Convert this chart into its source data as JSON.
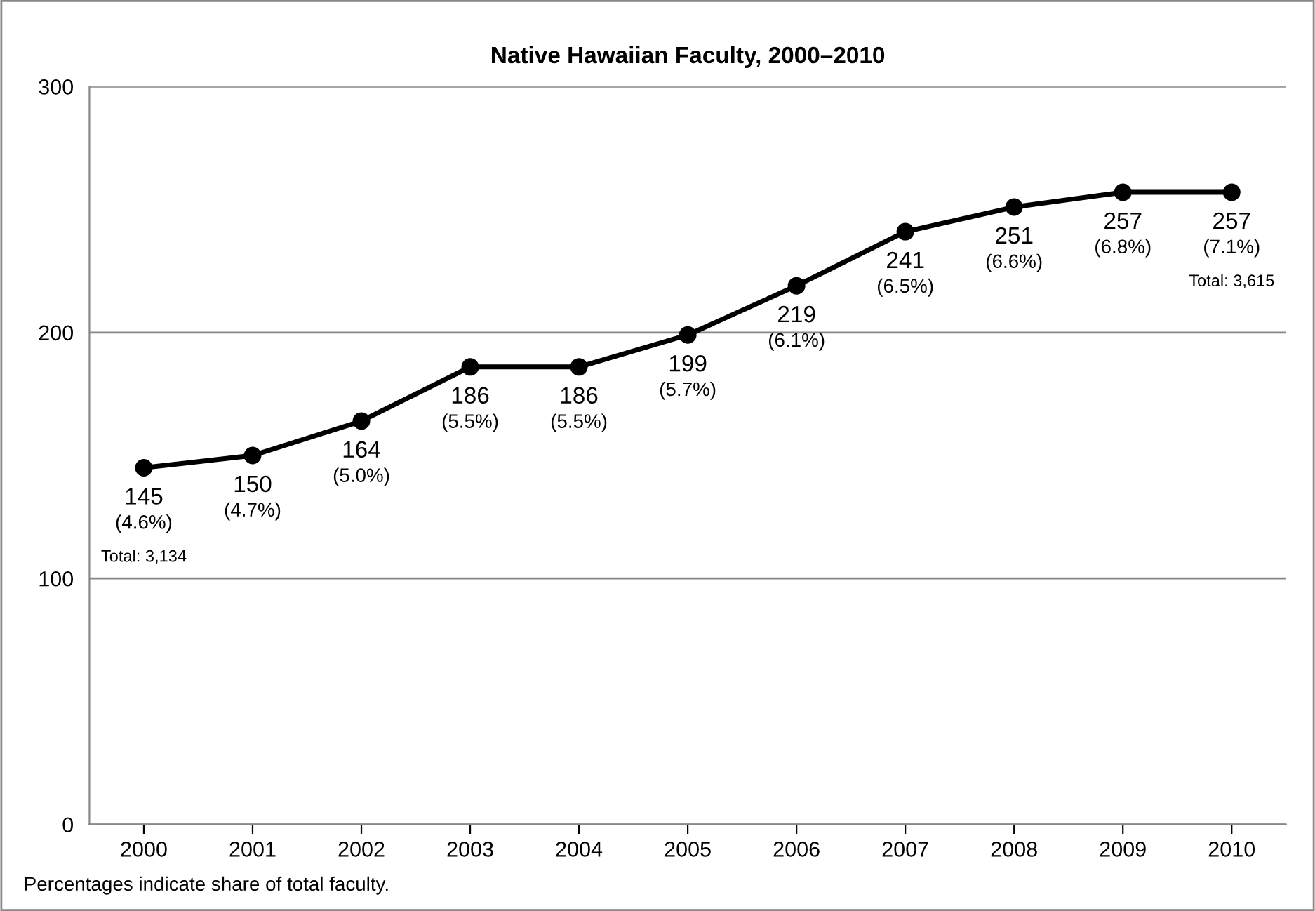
{
  "chart_data": {
    "type": "line",
    "title": "Native Hawaiian Faculty, 2000–2010",
    "categories": [
      "2000",
      "2001",
      "2002",
      "2003",
      "2004",
      "2005",
      "2006",
      "2007",
      "2008",
      "2009",
      "2010"
    ],
    "series": [
      {
        "color": "#000000",
        "values": [
          145,
          150,
          164,
          186,
          186,
          199,
          219,
          241,
          251,
          257,
          257
        ],
        "value_labels": [
          "145\n(4.6%)",
          "150\n(4.7%)",
          "164\n(5.0%)",
          "186\n(5.5%)",
          "186\n(5.5%)",
          "199\n(5.7%)",
          "219\n(6.1%)",
          "241\n(6.5%)",
          "251\n(6.6%)",
          "257\n(6.8%)",
          "257\n(7.1%)"
        ]
      }
    ],
    "ylim": [
      0,
      300
    ],
    "yticks": [
      0,
      100,
      200,
      300
    ],
    "grid": "y",
    "marker": "circle",
    "line_style": "solid",
    "annotations": [
      "Total: 3,134",
      "Total: 3,615",
      "Percentages indicate share of total faculty."
    ]
  }
}
